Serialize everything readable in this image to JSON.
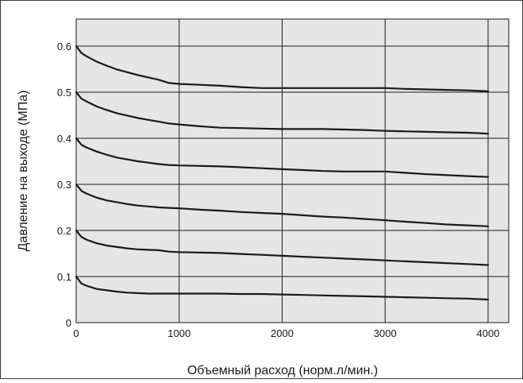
{
  "chart_data": {
    "type": "line",
    "title": "",
    "xlabel": "Объемный расход (норм.л/мин.)",
    "ylabel": "Давление на выходе (МПа)",
    "xlim": [
      0,
      4000
    ],
    "ylim": [
      0,
      0.6
    ],
    "x_ticks": [
      0,
      1000,
      2000,
      3000,
      4000
    ],
    "x_tick_labels": [
      "0",
      "1000",
      "2000",
      "3000",
      "4000"
    ],
    "y_ticks": [
      0,
      0.1,
      0.2,
      0.3,
      0.4,
      0.5,
      0.6
    ],
    "y_tick_labels": [
      "0",
      "0.1",
      "0.2",
      "0.3",
      "0.4",
      "0.5",
      "0.6"
    ],
    "grid": true,
    "background_color": "#e6e6e6",
    "line_color": "#1a1a1a",
    "series": [
      {
        "x": [
          0,
          50,
          100,
          200,
          300,
          400,
          500,
          600,
          700,
          800,
          900,
          1000,
          1200,
          1400,
          1600,
          1800,
          2000,
          2200,
          2400,
          2600,
          2800,
          3000,
          3200,
          3400,
          3600,
          3800,
          4000
        ],
        "values": [
          0.6,
          0.585,
          0.578,
          0.566,
          0.557,
          0.549,
          0.543,
          0.537,
          0.532,
          0.527,
          0.52,
          0.518,
          0.516,
          0.514,
          0.511,
          0.509,
          0.509,
          0.509,
          0.509,
          0.509,
          0.509,
          0.509,
          0.507,
          0.506,
          0.505,
          0.504,
          0.502
        ]
      },
      {
        "x": [
          0,
          50,
          100,
          200,
          300,
          400,
          500,
          600,
          700,
          800,
          900,
          1000,
          1200,
          1400,
          1600,
          1800,
          2000,
          2200,
          2400,
          2600,
          2800,
          3000,
          3200,
          3400,
          3600,
          3800,
          4000
        ],
        "values": [
          0.5,
          0.486,
          0.48,
          0.469,
          0.461,
          0.454,
          0.449,
          0.444,
          0.44,
          0.436,
          0.432,
          0.43,
          0.426,
          0.423,
          0.422,
          0.421,
          0.42,
          0.42,
          0.42,
          0.419,
          0.418,
          0.416,
          0.415,
          0.414,
          0.413,
          0.412,
          0.41
        ]
      },
      {
        "x": [
          0,
          50,
          100,
          200,
          300,
          400,
          500,
          600,
          700,
          800,
          900,
          1000,
          1200,
          1400,
          1600,
          1800,
          2000,
          2200,
          2400,
          2600,
          2800,
          3000,
          3200,
          3400,
          3600,
          3800,
          4000
        ],
        "values": [
          0.4,
          0.386,
          0.38,
          0.371,
          0.364,
          0.358,
          0.354,
          0.35,
          0.347,
          0.344,
          0.342,
          0.341,
          0.34,
          0.339,
          0.337,
          0.335,
          0.333,
          0.331,
          0.329,
          0.328,
          0.328,
          0.328,
          0.325,
          0.322,
          0.32,
          0.318,
          0.316
        ]
      },
      {
        "x": [
          0,
          50,
          100,
          200,
          300,
          400,
          500,
          600,
          700,
          800,
          900,
          1000,
          1200,
          1400,
          1600,
          1800,
          2000,
          2200,
          2400,
          2600,
          2800,
          3000,
          3200,
          3400,
          3600,
          3800,
          4000
        ],
        "values": [
          0.3,
          0.286,
          0.28,
          0.271,
          0.265,
          0.261,
          0.257,
          0.254,
          0.252,
          0.25,
          0.249,
          0.248,
          0.245,
          0.243,
          0.24,
          0.238,
          0.236,
          0.233,
          0.23,
          0.228,
          0.225,
          0.222,
          0.219,
          0.216,
          0.213,
          0.211,
          0.209
        ]
      },
      {
        "x": [
          0,
          50,
          100,
          200,
          300,
          400,
          500,
          600,
          700,
          800,
          900,
          1000,
          1200,
          1400,
          1600,
          1800,
          2000,
          2200,
          2400,
          2600,
          2800,
          3000,
          3200,
          3400,
          3600,
          3800,
          4000
        ],
        "values": [
          0.2,
          0.186,
          0.18,
          0.172,
          0.167,
          0.164,
          0.161,
          0.159,
          0.158,
          0.157,
          0.154,
          0.153,
          0.152,
          0.151,
          0.149,
          0.147,
          0.145,
          0.143,
          0.141,
          0.139,
          0.137,
          0.135,
          0.133,
          0.131,
          0.129,
          0.127,
          0.125
        ]
      },
      {
        "x": [
          0,
          50,
          100,
          200,
          300,
          400,
          500,
          600,
          700,
          800,
          900,
          1000,
          1200,
          1400,
          1600,
          1800,
          2000,
          2200,
          2400,
          2600,
          2800,
          3000,
          3200,
          3400,
          3600,
          3800,
          4000
        ],
        "values": [
          0.1,
          0.085,
          0.08,
          0.073,
          0.07,
          0.067,
          0.065,
          0.064,
          0.063,
          0.063,
          0.063,
          0.063,
          0.063,
          0.063,
          0.062,
          0.062,
          0.061,
          0.06,
          0.059,
          0.058,
          0.057,
          0.056,
          0.055,
          0.054,
          0.053,
          0.052,
          0.05
        ]
      }
    ]
  }
}
